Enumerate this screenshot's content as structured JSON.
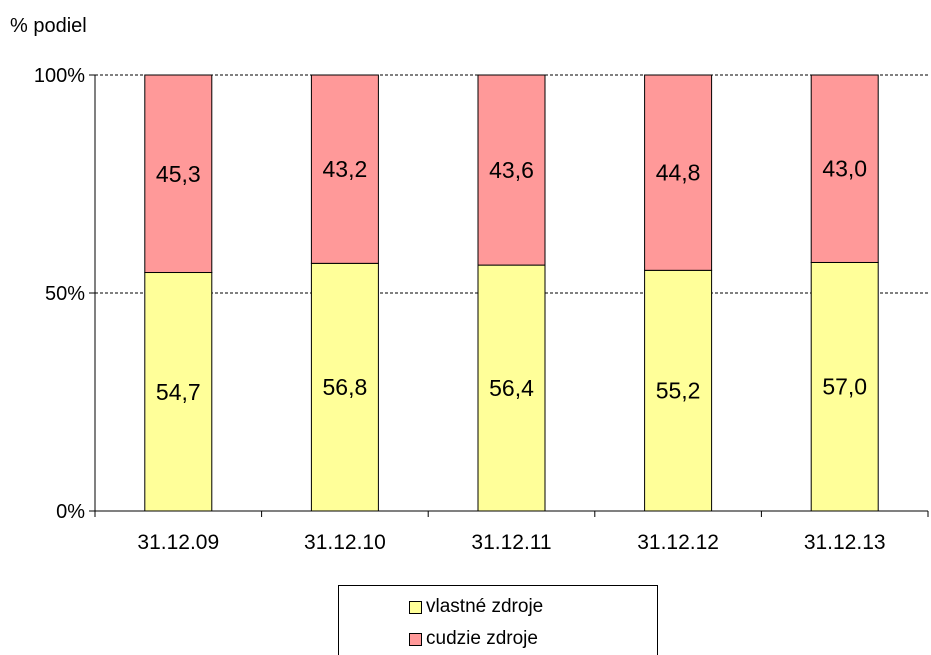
{
  "chart_data": {
    "type": "bar",
    "stacked": true,
    "ylabel": "% podiel",
    "categories": [
      "31.12.09",
      "31.12.10",
      "31.12.11",
      "31.12.12",
      "31.12.13"
    ],
    "yticks": [
      "0%",
      "50%",
      "100%"
    ],
    "ylim": [
      0,
      100
    ],
    "grid": "dashed at 50% and 100%",
    "legend_position": "bottom",
    "series": [
      {
        "name": "vlastné zdroje",
        "color": "#ffff99",
        "values": [
          54.7,
          56.8,
          56.4,
          55.2,
          57.0
        ],
        "labels": [
          "54,7",
          "56,8",
          "56,4",
          "55,2",
          "57,0"
        ]
      },
      {
        "name": "cudzie zdroje",
        "color": "#ff9999",
        "values": [
          45.3,
          43.2,
          43.6,
          44.8,
          43.0
        ],
        "labels": [
          "45,3",
          "43,2",
          "43,6",
          "44,8",
          "43,0"
        ]
      }
    ]
  }
}
